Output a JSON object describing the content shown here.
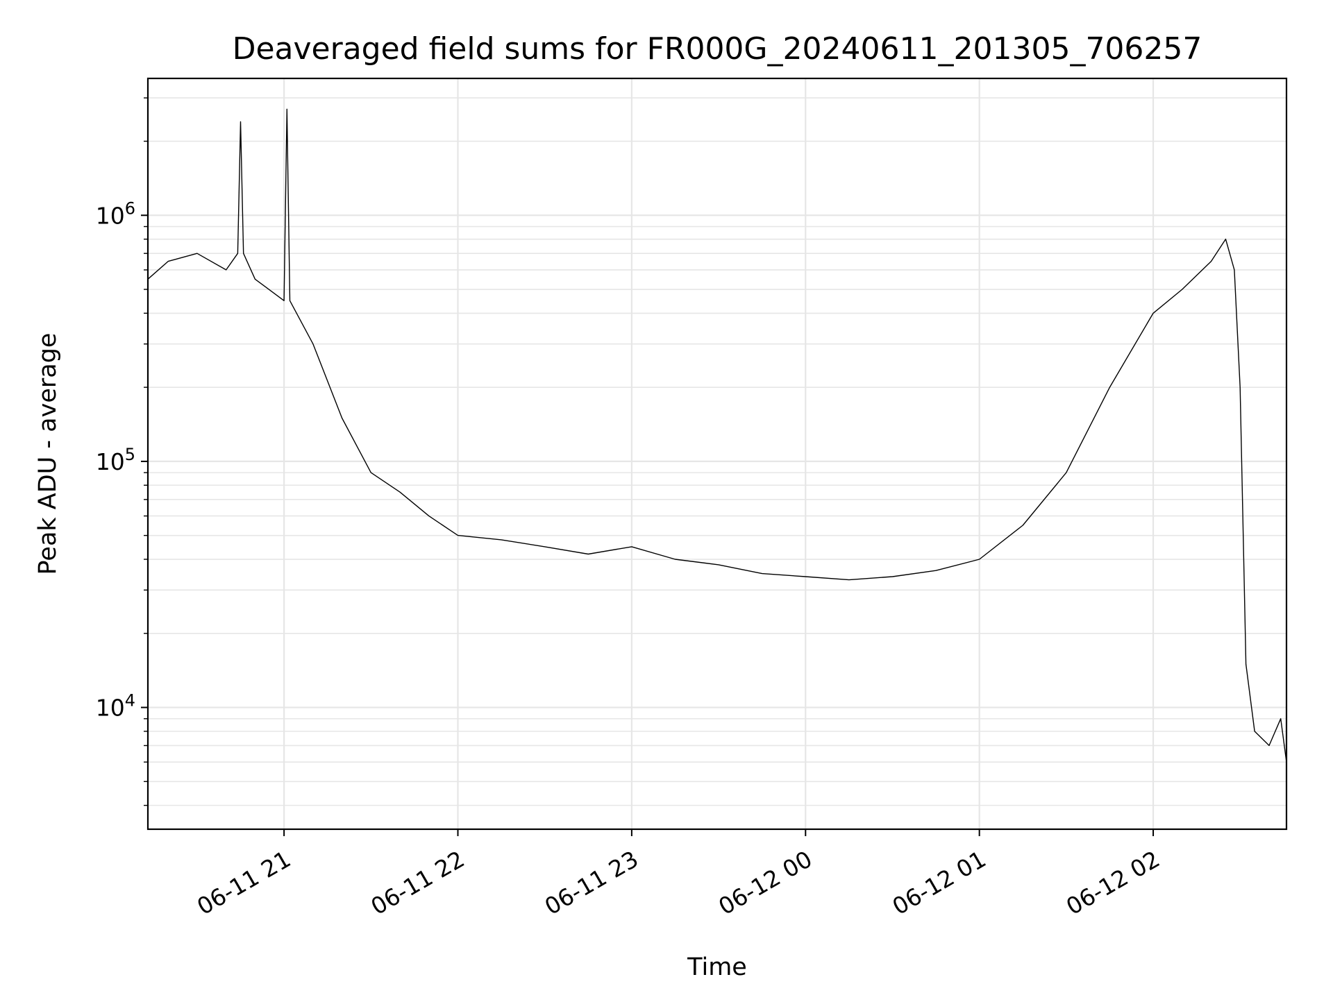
{
  "chart_data": {
    "type": "line",
    "title": "Deaveraged field sums for FR000G_20240611_201305_706257",
    "xlabel": "Time",
    "ylabel": "Peak ADU - average",
    "yscale": "log",
    "ylim": [
      3200,
      3600000
    ],
    "y_ticks": [
      {
        "value": 10000,
        "base": "10",
        "exp": "4"
      },
      {
        "value": 100000,
        "base": "10",
        "exp": "5"
      },
      {
        "value": 1000000,
        "base": "10",
        "exp": "6"
      }
    ],
    "xlim": [
      "2024-06-11 20:13",
      "2024-06-12 02:46"
    ],
    "x_ticks": [
      {
        "value": "2024-06-11 21:00",
        "label": "06-11 21"
      },
      {
        "value": "2024-06-11 22:00",
        "label": "06-11 22"
      },
      {
        "value": "2024-06-11 23:00",
        "label": "06-11 23"
      },
      {
        "value": "2024-06-12 00:00",
        "label": "06-12 00"
      },
      {
        "value": "2024-06-12 01:00",
        "label": "06-12 01"
      },
      {
        "value": "2024-06-12 02:00",
        "label": "06-12 02"
      }
    ],
    "grid": true,
    "line_color": "#000000",
    "grid_color": "#e6e6e6",
    "series": [
      {
        "name": "",
        "x": [
          "2024-06-11 20:13",
          "2024-06-11 20:20",
          "2024-06-11 20:30",
          "2024-06-11 20:40",
          "2024-06-11 20:44",
          "2024-06-11 20:45",
          "2024-06-11 20:46",
          "2024-06-11 20:50",
          "2024-06-11 21:00",
          "2024-06-11 21:01",
          "2024-06-11 21:02",
          "2024-06-11 21:10",
          "2024-06-11 21:20",
          "2024-06-11 21:30",
          "2024-06-11 21:40",
          "2024-06-11 21:50",
          "2024-06-11 22:00",
          "2024-06-11 22:15",
          "2024-06-11 22:30",
          "2024-06-11 22:45",
          "2024-06-11 23:00",
          "2024-06-11 23:15",
          "2024-06-11 23:30",
          "2024-06-11 23:45",
          "2024-06-12 00:00",
          "2024-06-12 00:15",
          "2024-06-12 00:30",
          "2024-06-12 00:45",
          "2024-06-12 01:00",
          "2024-06-12 01:15",
          "2024-06-12 01:30",
          "2024-06-12 01:45",
          "2024-06-12 02:00",
          "2024-06-12 02:10",
          "2024-06-12 02:20",
          "2024-06-12 02:25",
          "2024-06-12 02:28",
          "2024-06-12 02:30",
          "2024-06-12 02:32",
          "2024-06-12 02:35",
          "2024-06-12 02:40",
          "2024-06-12 02:44",
          "2024-06-12 02:46"
        ],
        "y": [
          550000,
          650000,
          700000,
          600000,
          700000,
          2400000,
          700000,
          550000,
          450000,
          2700000,
          450000,
          300000,
          150000,
          90000,
          75000,
          60000,
          50000,
          48000,
          45000,
          42000,
          45000,
          40000,
          38000,
          35000,
          34000,
          33000,
          34000,
          36000,
          40000,
          55000,
          90000,
          200000,
          400000,
          500000,
          650000,
          800000,
          600000,
          200000,
          15000,
          8000,
          7000,
          9000,
          6000
        ]
      }
    ]
  }
}
